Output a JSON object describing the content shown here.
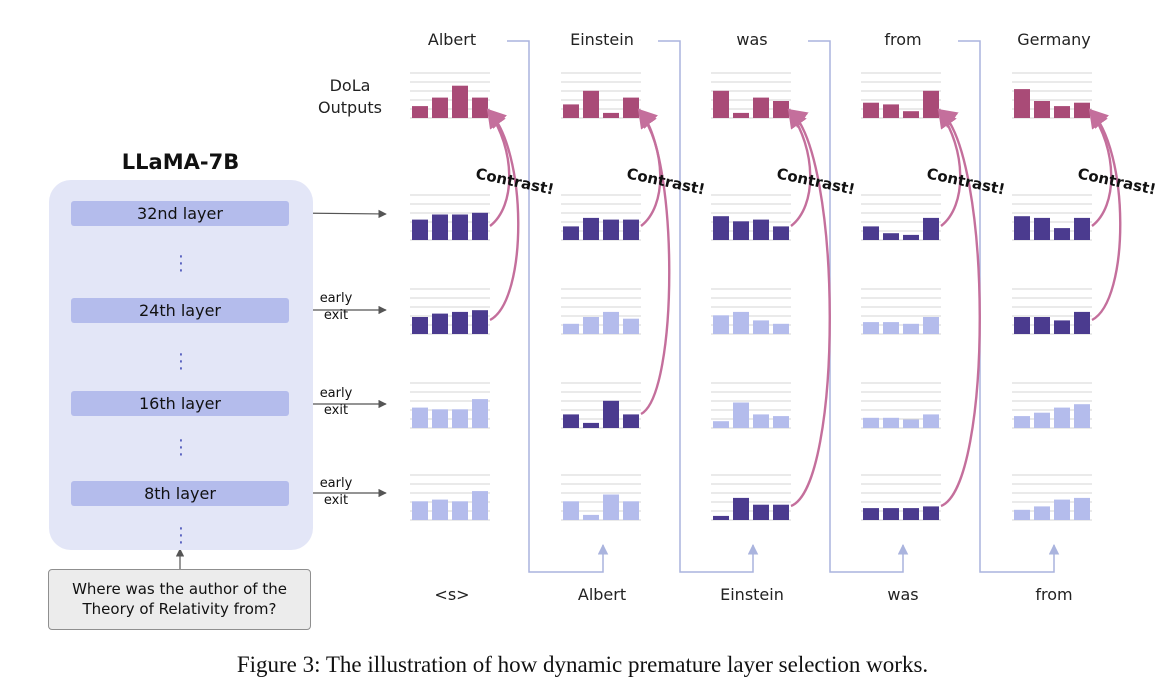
{
  "model_title": "LLaMA-7B",
  "layers": [
    {
      "label": "32nd layer",
      "early_exit": false
    },
    {
      "label": "24th layer",
      "early_exit": true
    },
    {
      "label": "16th layer",
      "early_exit": true
    },
    {
      "label": "8th layer",
      "early_exit": true
    }
  ],
  "early_exit_label": [
    "early",
    "exit"
  ],
  "question": [
    "Where was the author of the",
    "Theory of Relativity from?"
  ],
  "dola_label": [
    "DoLa",
    "Outputs"
  ],
  "contrast_label": "Contrast!",
  "steps": [
    {
      "input": "<s>",
      "output": "Albert",
      "rows": {
        "output": [
          0.35,
          0.6,
          0.95,
          0.6
        ],
        "layer32": [
          0.6,
          0.75,
          0.75,
          0.8
        ],
        "layer24": [
          0.5,
          0.6,
          0.65,
          0.7
        ],
        "layer16": [
          0.6,
          0.55,
          0.55,
          0.85
        ],
        "layer8": [
          0.55,
          0.6,
          0.55,
          0.85
        ]
      },
      "premature": "layer24"
    },
    {
      "input": "Albert",
      "output": "Einstein",
      "rows": {
        "output": [
          0.4,
          0.8,
          0.15,
          0.6
        ],
        "layer32": [
          0.4,
          0.65,
          0.6,
          0.6
        ],
        "layer24": [
          0.3,
          0.5,
          0.65,
          0.45
        ],
        "layer16": [
          0.4,
          0.15,
          0.8,
          0.4
        ],
        "layer8": [
          0.55,
          0.15,
          0.75,
          0.55
        ]
      },
      "premature": "layer16"
    },
    {
      "input": "Einstein",
      "output": "was",
      "rows": {
        "output": [
          0.8,
          0.15,
          0.6,
          0.5
        ],
        "layer32": [
          0.7,
          0.55,
          0.6,
          0.4
        ],
        "layer24": [
          0.55,
          0.65,
          0.4,
          0.3
        ],
        "layer16": [
          0.2,
          0.75,
          0.4,
          0.35
        ],
        "layer8": [
          0.12,
          0.65,
          0.45,
          0.45
        ]
      },
      "premature": "layer8"
    },
    {
      "input": "was",
      "output": "from",
      "rows": {
        "output": [
          0.45,
          0.4,
          0.2,
          0.8
        ],
        "layer32": [
          0.4,
          0.2,
          0.15,
          0.65
        ],
        "layer24": [
          0.35,
          0.35,
          0.3,
          0.5
        ],
        "layer16": [
          0.3,
          0.3,
          0.25,
          0.4
        ],
        "layer8": [
          0.35,
          0.35,
          0.35,
          0.4
        ]
      },
      "premature": "layer8"
    },
    {
      "input": "from",
      "output": "Germany",
      "rows": {
        "output": [
          0.85,
          0.5,
          0.35,
          0.45
        ],
        "layer32": [
          0.7,
          0.65,
          0.35,
          0.65
        ],
        "layer24": [
          0.5,
          0.5,
          0.4,
          0.65
        ],
        "layer16": [
          0.35,
          0.45,
          0.6,
          0.7
        ],
        "layer8": [
          0.3,
          0.4,
          0.6,
          0.65
        ]
      },
      "premature": "layer24"
    }
  ],
  "colors": {
    "output_bar": "#a94b77",
    "selected_bar": "#4b3b8f",
    "other_bar": "#b4bcec",
    "contrast_arrow": "#c46f9c",
    "connector": "#aab4de",
    "panel": "#e3e6f7",
    "layer_box": "#b4bcec"
  },
  "caption": "Figure 3: The illustration of how dynamic premature layer selection works."
}
